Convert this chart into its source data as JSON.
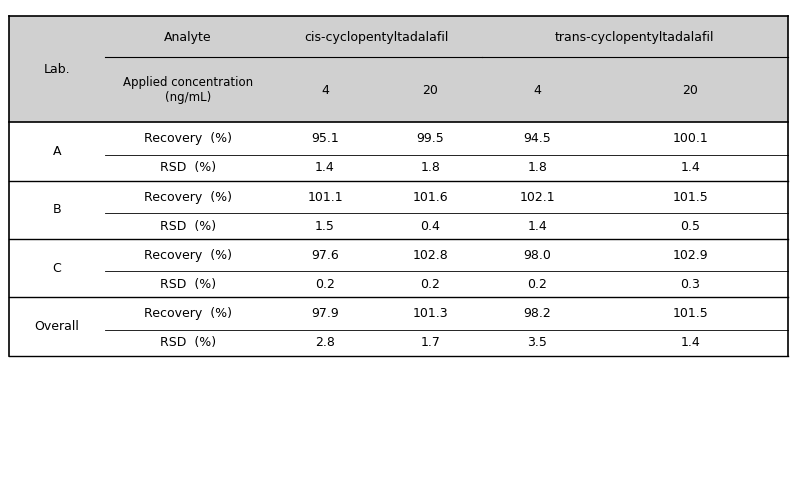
{
  "header_bg": "#d0d0d0",
  "header_text_color": "#000000",
  "body_bg": "#ffffff",
  "body_text_color": "#000000",
  "line_color": "#000000",
  "font_size": 9,
  "header_font_size": 9,
  "col1_label": "Lab.",
  "col2_label": "Analyte",
  "col2_sub": "Applied concentration\n(ng/mL)",
  "analyte1": "cis-cyclopentyltadalafil",
  "analyte2": "trans-cyclopentyltadalafil",
  "conc_values": [
    "4",
    "20",
    "4",
    "20"
  ],
  "rows": [
    {
      "lab": "A",
      "metric1": "Recovery  (%)",
      "vals1": [
        "95.1",
        "99.5",
        "94.5",
        "100.1"
      ],
      "metric2": "RSD  (%)",
      "vals2": [
        "1.4",
        "1.8",
        "1.8",
        "1.4"
      ]
    },
    {
      "lab": "B",
      "metric1": "Recovery  (%)",
      "vals1": [
        "101.1",
        "101.6",
        "102.1",
        "101.5"
      ],
      "metric2": "RSD  (%)",
      "vals2": [
        "1.5",
        "0.4",
        "1.4",
        "0.5"
      ]
    },
    {
      "lab": "C",
      "metric1": "Recovery  (%)",
      "vals1": [
        "97.6",
        "102.8",
        "98.0",
        "102.9"
      ],
      "metric2": "RSD  (%)",
      "vals2": [
        "0.2",
        "0.2",
        "0.2",
        "0.3"
      ]
    },
    {
      "lab": "Overall",
      "metric1": "Recovery  (%)",
      "vals1": [
        "97.9",
        "101.3",
        "98.2",
        "101.5"
      ],
      "metric2": "RSD  (%)",
      "vals2": [
        "2.8",
        "1.7",
        "3.5",
        "1.4"
      ]
    }
  ]
}
